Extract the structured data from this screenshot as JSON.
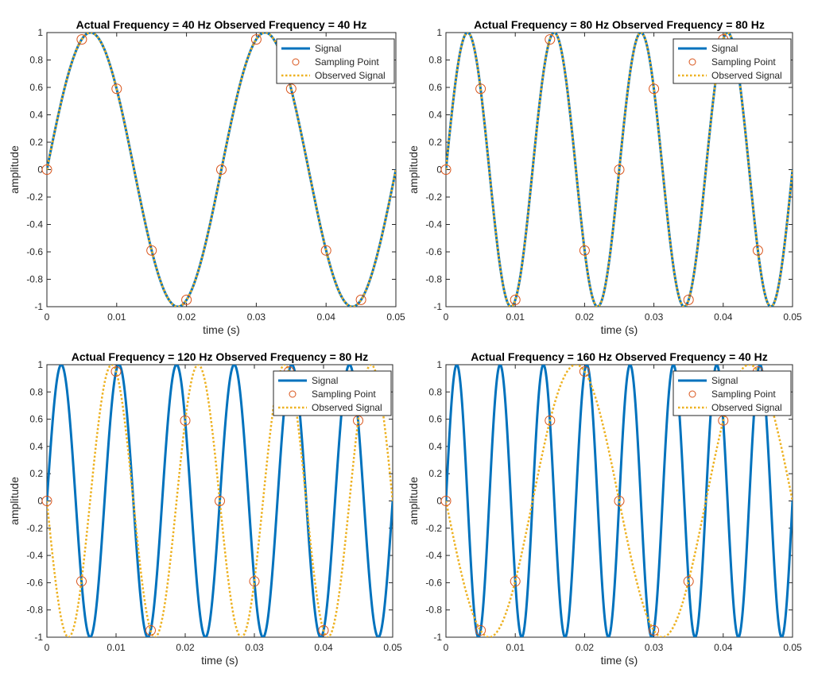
{
  "chart_data": [
    {
      "type": "line",
      "title": "Actual Frequency = 40 Hz Observed Frequency = 40 Hz",
      "xlabel": "time (s)",
      "ylabel": "amplitude",
      "xlim": [
        0,
        0.05
      ],
      "ylim": [
        -1,
        1
      ],
      "x_ticks": [
        "0",
        "0.01",
        "0.02",
        "0.03",
        "0.04",
        "0.05"
      ],
      "y_ticks": [
        "-1",
        "-0.8",
        "-0.6",
        "-0.4",
        "-0.2",
        "0",
        "0.2",
        "0.4",
        "0.6",
        "0.8",
        "1"
      ],
      "grid": false,
      "legend_position": "top-right",
      "series": [
        {
          "name": "Signal",
          "kind": "line",
          "frequency_hz": 40,
          "color": "#0072BD",
          "style": "solid"
        },
        {
          "name": "Sampling Point",
          "kind": "markers",
          "x": [
            0,
            0.005,
            0.01,
            0.015,
            0.02,
            0.025,
            0.03,
            0.035,
            0.04,
            0.045
          ],
          "y": [
            0,
            0.95,
            0.59,
            -0.59,
            -0.95,
            0,
            0.95,
            0.59,
            -0.59,
            -0.95
          ],
          "color": "#D95319"
        },
        {
          "name": "Observed Signal",
          "kind": "line",
          "frequency_hz": 40,
          "color": "#EDB120",
          "style": "dotted"
        }
      ]
    },
    {
      "type": "line",
      "title": "Actual Frequency = 80 Hz Observed Frequency = 80 Hz",
      "xlabel": "time (s)",
      "ylabel": "amplitude",
      "xlim": [
        0,
        0.05
      ],
      "ylim": [
        -1,
        1
      ],
      "x_ticks": [
        "0",
        "0.01",
        "0.02",
        "0.03",
        "0.04",
        "0.05"
      ],
      "y_ticks": [
        "-1",
        "-0.8",
        "-0.6",
        "-0.4",
        "-0.2",
        "0",
        "0.2",
        "0.4",
        "0.6",
        "0.8",
        "1"
      ],
      "grid": false,
      "legend_position": "top-right",
      "series": [
        {
          "name": "Signal",
          "kind": "line",
          "frequency_hz": 80,
          "color": "#0072BD",
          "style": "solid"
        },
        {
          "name": "Sampling Point",
          "kind": "markers",
          "x": [
            0,
            0.005,
            0.01,
            0.015,
            0.02,
            0.025,
            0.03,
            0.035,
            0.04,
            0.045
          ],
          "y": [
            0,
            0.59,
            -0.95,
            0.95,
            -0.59,
            0,
            0.59,
            -0.95,
            0.95,
            -0.59
          ],
          "color": "#D95319"
        },
        {
          "name": "Observed Signal",
          "kind": "line",
          "frequency_hz": 80,
          "color": "#EDB120",
          "style": "dotted"
        }
      ]
    },
    {
      "type": "line",
      "title": "Actual Frequency = 120 Hz Observed Frequency = 80 Hz",
      "xlabel": "time (s)",
      "ylabel": "amplitude",
      "xlim": [
        0,
        0.05
      ],
      "ylim": [
        -1,
        1
      ],
      "x_ticks": [
        "0",
        "0.01",
        "0.02",
        "0.03",
        "0.04",
        "0.05"
      ],
      "y_ticks": [
        "-1",
        "-0.8",
        "-0.6",
        "-0.4",
        "-0.2",
        "0",
        "0.2",
        "0.4",
        "0.6",
        "0.8",
        "1"
      ],
      "grid": false,
      "legend_position": "top-right",
      "series": [
        {
          "name": "Signal",
          "kind": "line",
          "frequency_hz": 120,
          "color": "#0072BD",
          "style": "solid"
        },
        {
          "name": "Sampling Point",
          "kind": "markers",
          "x": [
            0,
            0.005,
            0.01,
            0.015,
            0.02,
            0.025,
            0.03,
            0.035,
            0.04,
            0.045
          ],
          "y": [
            0,
            -0.59,
            0.95,
            -0.95,
            0.59,
            0,
            -0.59,
            0.95,
            -0.95,
            0.59
          ],
          "color": "#D95319"
        },
        {
          "name": "Observed Signal",
          "kind": "line",
          "frequency_hz": -80,
          "color": "#EDB120",
          "style": "dotted"
        }
      ]
    },
    {
      "type": "line",
      "title": "Actual Frequency = 160 Hz Observed Frequency = 40 Hz",
      "xlabel": "time (s)",
      "ylabel": "amplitude",
      "xlim": [
        0,
        0.05
      ],
      "ylim": [
        -1,
        1
      ],
      "x_ticks": [
        "0",
        "0.01",
        "0.02",
        "0.03",
        "0.04",
        "0.05"
      ],
      "y_ticks": [
        "-1",
        "-0.8",
        "-0.6",
        "-0.4",
        "-0.2",
        "0",
        "0.2",
        "0.4",
        "0.6",
        "0.8",
        "1"
      ],
      "grid": false,
      "legend_position": "top-right",
      "series": [
        {
          "name": "Signal",
          "kind": "line",
          "frequency_hz": 160,
          "color": "#0072BD",
          "style": "solid"
        },
        {
          "name": "Sampling Point",
          "kind": "markers",
          "x": [
            0,
            0.005,
            0.01,
            0.015,
            0.02,
            0.025,
            0.03,
            0.035,
            0.04,
            0.045
          ],
          "y": [
            0,
            -0.95,
            -0.59,
            0.59,
            0.95,
            0,
            -0.95,
            -0.59,
            0.59,
            0.95
          ],
          "color": "#D95319"
        },
        {
          "name": "Observed Signal",
          "kind": "line",
          "frequency_hz": -40,
          "color": "#EDB120",
          "style": "dotted"
        }
      ]
    }
  ]
}
